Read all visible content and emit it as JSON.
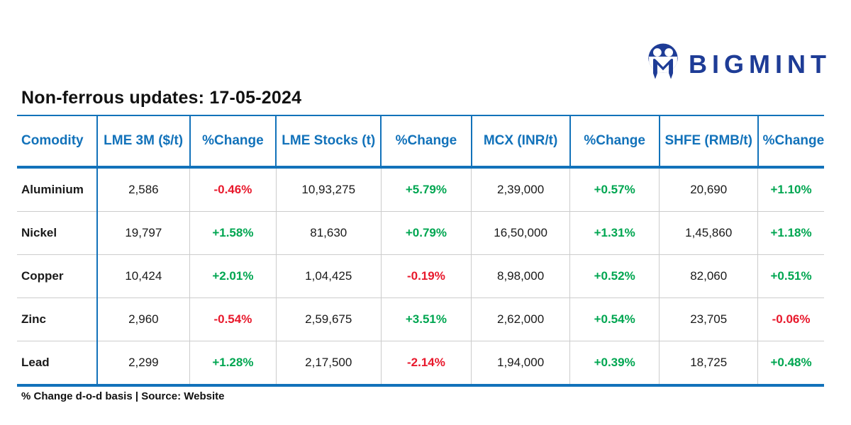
{
  "logo": {
    "brand": "BIGMINT",
    "icon": "bigmint-people-m-icon",
    "brand_color": "#1e3c96"
  },
  "title": "Non-ferrous updates: 17-05-2024",
  "footer_note": "% Change d-o-d basis | Source: Website",
  "colors": {
    "accent_blue": "#1272ba",
    "brand_navy": "#1e3c96",
    "positive_green": "#00a651",
    "negative_red": "#e8192c",
    "grid_gray": "#cccccc",
    "text_black": "#1a1a1a"
  },
  "chart_data": {
    "type": "table",
    "title": "Non-ferrous updates: 17-05-2024",
    "columns": [
      "Comodity",
      "LME 3M ($/t)",
      "%Change",
      "LME Stocks (t)",
      "%Change",
      "MCX (INR/t)",
      "%Change",
      "SHFE (RMB/t)",
      "%Change"
    ],
    "column_widths_pct": [
      9.9,
      11.5,
      10.7,
      13.0,
      11.2,
      12.2,
      11.1,
      12.2,
      8.2
    ],
    "rows": [
      [
        "Aluminium",
        "2,586",
        "-0.46%",
        "10,93,275",
        "+5.79%",
        "2,39,000",
        "+0.57%",
        "20,690",
        "+1.10%"
      ],
      [
        "Nickel",
        "19,797",
        "+1.58%",
        "81,630",
        "+0.79%",
        "16,50,000",
        "+1.31%",
        "1,45,860",
        "+1.18%"
      ],
      [
        "Copper",
        "10,424",
        "+2.01%",
        "1,04,425",
        "-0.19%",
        "8,98,000",
        "+0.52%",
        "82,060",
        "+0.51%"
      ],
      [
        "Zinc",
        "2,960",
        "-0.54%",
        "2,59,675",
        "+3.51%",
        "2,62,000",
        "+0.54%",
        "23,705",
        "-0.06%"
      ],
      [
        "Lead",
        "2,299",
        "+1.28%",
        "2,17,500",
        "-2.14%",
        "1,94,000",
        "+0.39%",
        "18,725",
        "+0.48%"
      ]
    ],
    "notes": "% Change d-o-d basis | Source: Website",
    "change_column_indices": [
      2,
      4,
      6,
      8
    ]
  }
}
